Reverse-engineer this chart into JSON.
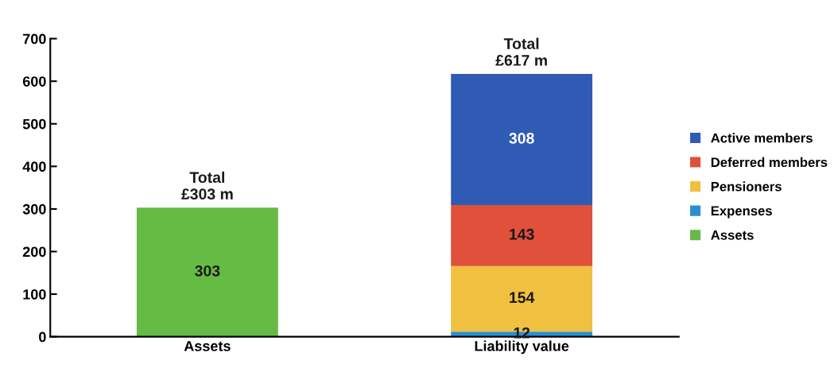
{
  "chart_data": {
    "type": "bar",
    "stacked": true,
    "categories": [
      "Assets",
      "Liability value"
    ],
    "series": [
      {
        "name": "Assets",
        "color": "#66bb44",
        "values": [
          303,
          null
        ]
      },
      {
        "name": "Expenses",
        "color": "#2a8fd0",
        "values": [
          null,
          12
        ]
      },
      {
        "name": "Pensioners",
        "color": "#f0c040",
        "values": [
          null,
          154
        ]
      },
      {
        "name": "Deferred members",
        "color": "#e0503a",
        "values": [
          null,
          143
        ]
      },
      {
        "name": "Active members",
        "color": "#2f5bb5",
        "values": [
          null,
          308
        ]
      }
    ],
    "totals": [
      "Total\n£303 m",
      "Total\n£617 m"
    ],
    "data_labels": true,
    "ylim": [
      0,
      700
    ],
    "yticks": [
      0,
      100,
      200,
      300,
      400,
      500,
      600,
      700
    ],
    "grid": false,
    "legend": "right"
  }
}
